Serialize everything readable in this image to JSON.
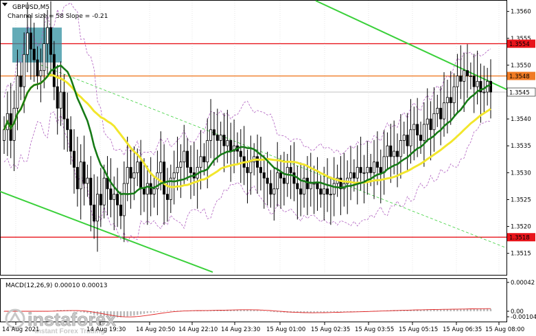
{
  "chart_data": {
    "type": "candlestick",
    "title": "GBPUSD,M5",
    "channel_label": "Channel size = 58  Slope = -0.21",
    "y_range": [
      1.3511,
      1.3562
    ],
    "y_ticks": [
      "1.3560",
      "1.3555",
      "1.3550",
      "1.3545",
      "1.3540",
      "1.3535",
      "1.3530",
      "1.3525",
      "1.3520",
      "1.3515"
    ],
    "x_ticks": [
      "14 Aug 2021",
      "14 Aug 19:30",
      "14 Aug 20:50",
      "14 Aug 22:10",
      "14 Aug 23:30",
      "15 Aug 01:00",
      "15 Aug 02:35",
      "15 Aug 03:55",
      "15 Aug 05:15",
      "15 Aug 06:35",
      "15 Aug 08:00"
    ],
    "price_levels": [
      {
        "value": 1.3554,
        "label": "1.3554",
        "color": "#e8141b"
      },
      {
        "value": 1.3548,
        "label": "1.3548",
        "color": "#f07b24"
      },
      {
        "value": 1.3518,
        "label": "1.3518",
        "color": "#e8141b"
      }
    ],
    "current_price": {
      "value": 1.3545,
      "label": "1.3545"
    },
    "closes": [
      1.3538,
      1.3541,
      1.3536,
      1.3542,
      1.3548,
      1.3546,
      1.3552,
      1.3556,
      1.3553,
      1.3551,
      1.3548,
      1.3549,
      1.3554,
      1.3557,
      1.3552,
      1.3546,
      1.3542,
      1.3545,
      1.354,
      1.3538,
      1.3534,
      1.3531,
      1.3527,
      1.3532,
      1.3528,
      1.3529,
      1.3524,
      1.3521,
      1.3526,
      1.3524,
      1.3529,
      1.3527,
      1.3525,
      1.3526,
      1.3524,
      1.3522,
      1.3528,
      1.3531,
      1.3529,
      1.353,
      1.3532,
      1.3527,
      1.3526,
      1.3528,
      1.3526,
      1.3527,
      1.353,
      1.3532,
      1.3526,
      1.3525,
      1.3529,
      1.353,
      1.3531,
      1.3532,
      1.3534,
      1.3531,
      1.353,
      1.3529,
      1.3531,
      1.3533,
      1.3532,
      1.3536,
      1.3538,
      1.3537,
      1.3536,
      1.3537,
      1.3535,
      1.3536,
      1.3534,
      1.3535,
      1.3534,
      1.3533,
      1.3531,
      1.353,
      1.3532,
      1.3533,
      1.3531,
      1.353,
      1.3529,
      1.3528,
      1.3526,
      1.3527,
      1.353,
      1.3529,
      1.3528,
      1.3531,
      1.353,
      1.3528,
      1.3527,
      1.3526,
      1.3529,
      1.3527,
      1.3528,
      1.3528,
      1.3527,
      1.3526,
      1.3527,
      1.3526,
      1.3526,
      1.3528,
      1.3529,
      1.3527,
      1.3528,
      1.3529,
      1.353,
      1.3529,
      1.3531,
      1.353,
      1.353,
      1.3531,
      1.353,
      1.3532,
      1.3531,
      1.353,
      1.3533,
      1.3535,
      1.3533,
      1.3534,
      1.3533,
      1.3536,
      1.3537,
      1.3535,
      1.3538,
      1.3539,
      1.3537,
      1.3536,
      1.3539,
      1.354,
      1.3538,
      1.3541,
      1.3542,
      1.354,
      1.3543,
      1.3544,
      1.3543,
      1.3546,
      1.3548,
      1.3547,
      1.3549,
      1.3548,
      1.3548,
      1.3546,
      1.3547,
      1.3545,
      1.3545,
      1.3547,
      1.3545
    ],
    "macd": {
      "label": "MACD(12,26,9) 0.00010 0.00013",
      "y_ticks": [
        "0.00042",
        "0.00",
        "-0.00104"
      ]
    },
    "watermark": {
      "brand": "instaforex",
      "tagline": "Instant Forex Trading"
    }
  }
}
